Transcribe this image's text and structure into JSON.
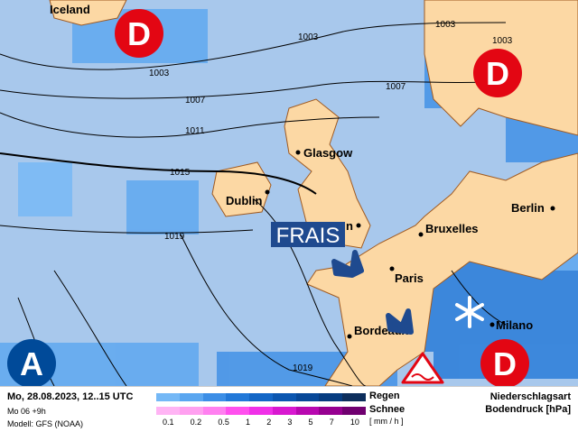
{
  "map": {
    "cities": [
      {
        "name": "Iceland"
      },
      {
        "name": "Glasgow"
      },
      {
        "name": "Dublin"
      },
      {
        "name": "n"
      },
      {
        "name": "Bruxelles"
      },
      {
        "name": "Berlin"
      },
      {
        "name": "Paris"
      },
      {
        "name": "Bordeaux"
      },
      {
        "name": "Milano"
      }
    ],
    "isobars": [
      "1003",
      "1003",
      "1007",
      "1011",
      "1015",
      "1019",
      "1003",
      "1003",
      "1007",
      "1019"
    ],
    "pressure_centers": [
      {
        "type": "low",
        "label": "D"
      },
      {
        "type": "low",
        "label": "D"
      },
      {
        "type": "low",
        "label": "D"
      },
      {
        "type": "high",
        "label": "A"
      }
    ],
    "annotation": "FRAIS",
    "icons": [
      "arrow-down-right-icon",
      "arrow-down-right-icon",
      "snowflake-icon",
      "warning-icon"
    ],
    "colors": {
      "sea": "#a8c8ec",
      "land": "#fcd8a4",
      "low": "#e30613",
      "high": "#004a99",
      "frais": "#1f4a8f"
    }
  },
  "legend": {
    "date": "Mo, 28.08.2023, 12..15 UTC",
    "run": "Mo 06 +9h",
    "model": "Modell: GFS (NOAA)",
    "rain_label": "Regen",
    "snow_label": "Schnee",
    "unit": "[ mm / h ]",
    "ticks": [
      "0.1",
      "0.2",
      "0.5",
      "1",
      "2",
      "3",
      "5",
      "7",
      "10"
    ],
    "rain_colors": [
      "#74b8f6",
      "#5aa6f0",
      "#3c8ee6",
      "#2278d8",
      "#1366c6",
      "#0b56b0",
      "#074898",
      "#063c80",
      "#0d2e5c"
    ],
    "snow_colors": [
      "#ffb4f4",
      "#ffa0f0",
      "#ff80f0",
      "#ff50ee",
      "#f030e8",
      "#d818d0",
      "#b808b0",
      "#960090",
      "#700070"
    ],
    "title1": "Niederschlagsart",
    "title2": "Bodendruck [hPa]"
  }
}
